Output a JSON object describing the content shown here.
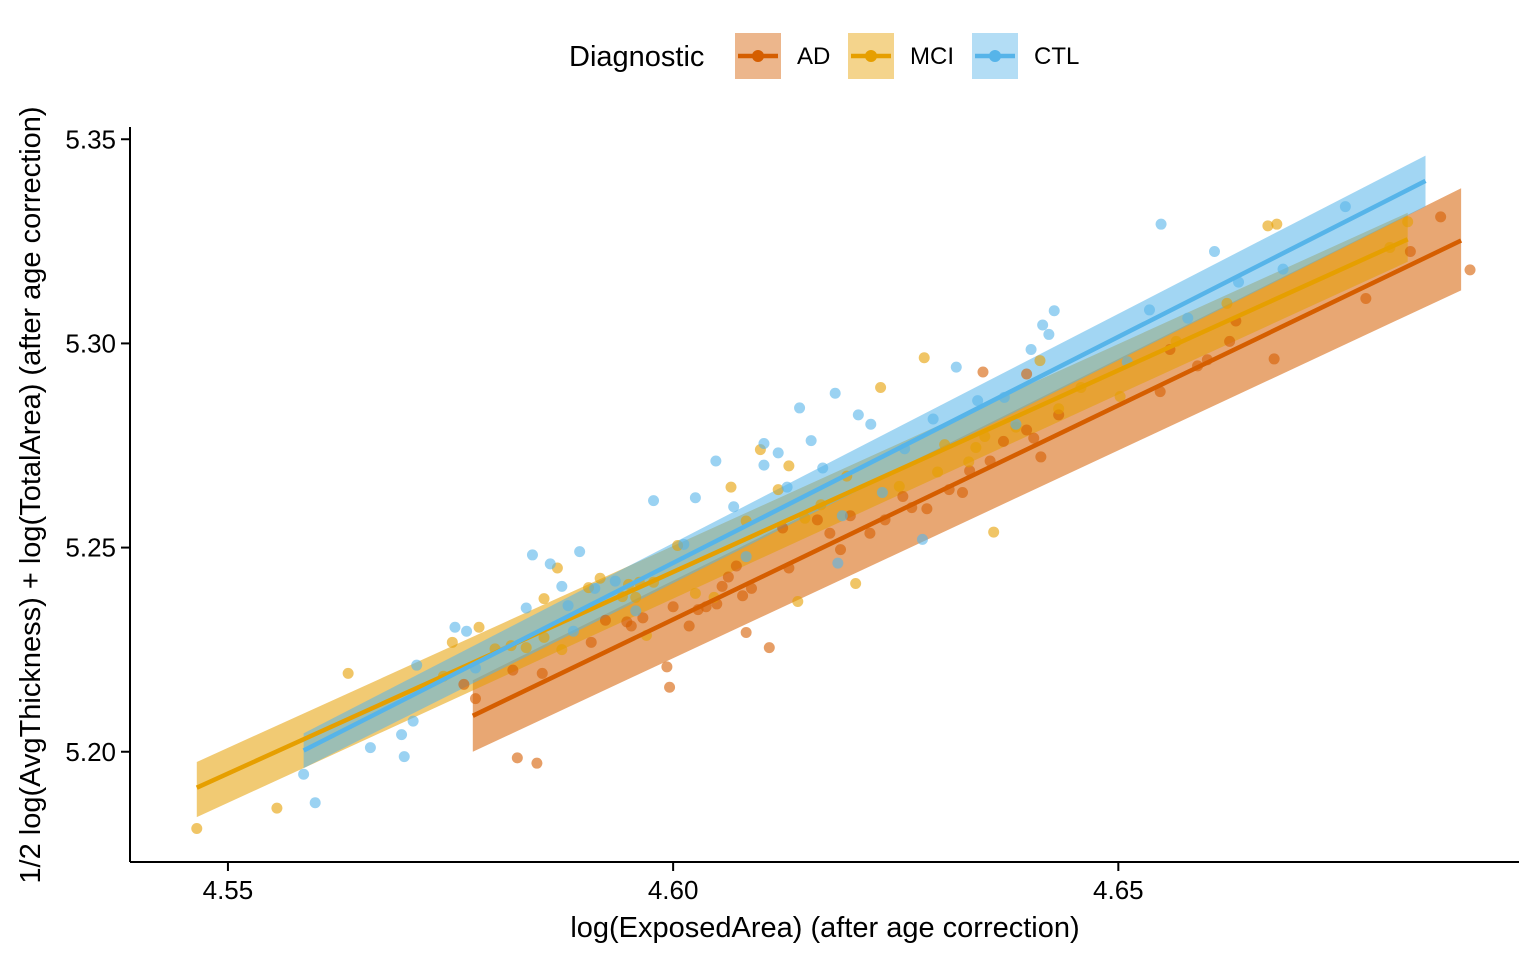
{
  "chart_data": {
    "type": "scatter",
    "xlabel": "log(ExposedArea) (after age correction)",
    "ylabel": "1/2 log(AvgThickness) + log(TotalArea) (after age correction)",
    "xlim": [
      4.539,
      4.695
    ],
    "ylim": [
      5.173,
      5.353
    ],
    "x_ticks": [
      "4.55",
      "4.60",
      "4.65"
    ],
    "x_tick_values": [
      4.55,
      4.6,
      4.65
    ],
    "y_ticks": [
      "5.20",
      "5.25",
      "5.30",
      "5.35"
    ],
    "y_tick_values": [
      5.2,
      5.25,
      5.3,
      5.35
    ],
    "grid": false,
    "legend": {
      "title": "Diagnostic",
      "position": "top",
      "entries": [
        "AD",
        "MCI",
        "CTL"
      ]
    },
    "series": [
      {
        "name": "AD",
        "color": "#D55E00",
        "fit": {
          "x": [
            4.5775,
            4.6885
          ],
          "y": [
            5.2088,
            5.3252
          ],
          "ci_low": [
            5.2,
            5.313
          ],
          "ci_high": [
            5.2175,
            5.338
          ]
        },
        "points": [
          [
            4.5765,
            5.2165
          ],
          [
            4.5778,
            5.213
          ],
          [
            4.582,
            5.22
          ],
          [
            4.5825,
            5.1985
          ],
          [
            4.5847,
            5.1972
          ],
          [
            4.5853,
            5.2192
          ],
          [
            4.5908,
            5.2268
          ],
          [
            4.5924,
            5.2322
          ],
          [
            4.5948,
            5.2318
          ],
          [
            4.5953,
            5.2308
          ],
          [
            4.5966,
            5.2328
          ],
          [
            4.5993,
            5.2208
          ],
          [
            4.5996,
            5.2158
          ],
          [
            4.6,
            5.2355
          ],
          [
            4.6018,
            5.2308
          ],
          [
            4.6028,
            5.2348
          ],
          [
            4.6037,
            5.2355
          ],
          [
            4.6049,
            5.2362
          ],
          [
            4.6055,
            5.2405
          ],
          [
            4.6062,
            5.2428
          ],
          [
            4.6071,
            5.2455
          ],
          [
            4.6078,
            5.2382
          ],
          [
            4.6082,
            5.2292
          ],
          [
            4.6088,
            5.24
          ],
          [
            4.6108,
            5.2255
          ],
          [
            4.6123,
            5.2548
          ],
          [
            4.613,
            5.245
          ],
          [
            4.6162,
            5.2568
          ],
          [
            4.6176,
            5.2535
          ],
          [
            4.6188,
            5.2495
          ],
          [
            4.6199,
            5.2578
          ],
          [
            4.6221,
            5.2535
          ],
          [
            4.6238,
            5.2568
          ],
          [
            4.6258,
            5.2625
          ],
          [
            4.6268,
            5.2598
          ],
          [
            4.6285,
            5.2595
          ],
          [
            4.631,
            5.2642
          ],
          [
            4.6325,
            5.2635
          ],
          [
            4.6333,
            5.2688
          ],
          [
            4.6356,
            5.2712
          ],
          [
            4.6371,
            5.276
          ],
          [
            4.6397,
            5.2788
          ],
          [
            4.6413,
            5.2722
          ],
          [
            4.6348,
            5.293
          ],
          [
            4.6397,
            5.2925
          ],
          [
            4.6405,
            5.2768
          ],
          [
            4.6433,
            5.2825
          ],
          [
            4.6547,
            5.2882
          ],
          [
            4.6558,
            5.2985
          ],
          [
            4.6589,
            5.2945
          ],
          [
            4.66,
            5.296
          ],
          [
            4.6625,
            5.3005
          ],
          [
            4.6632,
            5.3055
          ],
          [
            4.6675,
            5.2962
          ],
          [
            4.6778,
            5.311
          ],
          [
            4.6828,
            5.3225
          ],
          [
            4.6862,
            5.331
          ],
          [
            4.6895,
            5.318
          ]
        ]
      },
      {
        "name": "MCI",
        "color": "#E69F00",
        "fit": {
          "x": [
            4.5465,
            4.6825
          ],
          "y": [
            5.1912
          ],
          "y_end": 5.3255,
          "ci_low": [
            5.184,
            5.32
          ],
          "ci_high": [
            5.1975,
            5.332
          ]
        },
        "points": [
          [
            4.5465,
            5.1812
          ],
          [
            4.5555,
            5.1862
          ],
          [
            4.5635,
            5.2192
          ],
          [
            4.5742,
            5.2185
          ],
          [
            4.5752,
            5.2268
          ],
          [
            4.5782,
            5.2305
          ],
          [
            4.58,
            5.2252
          ],
          [
            4.5818,
            5.226
          ],
          [
            4.5835,
            5.2255
          ],
          [
            4.5855,
            5.228
          ],
          [
            4.5875,
            5.225
          ],
          [
            4.5855,
            5.2375
          ],
          [
            4.587,
            5.245
          ],
          [
            4.5905,
            5.2402
          ],
          [
            4.5918,
            5.2425
          ],
          [
            4.5943,
            5.238
          ],
          [
            4.595,
            5.241
          ],
          [
            4.5958,
            5.2378
          ],
          [
            4.5962,
            5.2415
          ],
          [
            4.597,
            5.2285
          ],
          [
            4.5978,
            5.2415
          ],
          [
            4.6005,
            5.2505
          ],
          [
            4.6025,
            5.2388
          ],
          [
            4.6046,
            5.2378
          ],
          [
            4.6065,
            5.2648
          ],
          [
            4.6082,
            5.2565
          ],
          [
            4.6098,
            5.274
          ],
          [
            4.6118,
            5.2642
          ],
          [
            4.613,
            5.27
          ],
          [
            4.614,
            5.2368
          ],
          [
            4.6148,
            5.2572
          ],
          [
            4.6166,
            5.2605
          ],
          [
            4.6195,
            5.2675
          ],
          [
            4.6205,
            5.2412
          ],
          [
            4.6233,
            5.2892
          ],
          [
            4.6254,
            5.265
          ],
          [
            4.6282,
            5.2965
          ],
          [
            4.6297,
            5.2685
          ],
          [
            4.6305,
            5.2752
          ],
          [
            4.6332,
            5.271
          ],
          [
            4.634,
            5.2745
          ],
          [
            4.635,
            5.2772
          ],
          [
            4.636,
            5.2538
          ],
          [
            4.6385,
            5.2795
          ],
          [
            4.6412,
            5.2958
          ],
          [
            4.6433,
            5.284
          ],
          [
            4.6458,
            5.2892
          ],
          [
            4.6502,
            5.287
          ],
          [
            4.6565,
            5.3005
          ],
          [
            4.6622,
            5.3098
          ],
          [
            4.6668,
            5.3288
          ],
          [
            4.6678,
            5.3292
          ],
          [
            4.6805,
            5.3235
          ],
          [
            4.6825,
            5.3298
          ]
        ]
      },
      {
        "name": "CTL",
        "color": "#56B4E9",
        "fit": {
          "x": [
            4.5585,
            4.6845
          ],
          "y": [
            5.2003
          ],
          "y_end": 5.3398,
          "ci_low": [
            5.196,
            5.3335
          ],
          "ci_high": [
            5.2045,
            5.346
          ]
        },
        "points": [
          [
            4.5585,
            5.1945
          ],
          [
            4.5598,
            5.1875
          ],
          [
            4.566,
            5.201
          ],
          [
            4.5695,
            5.2042
          ],
          [
            4.5698,
            5.1988
          ],
          [
            4.5708,
            5.2075
          ],
          [
            4.5712,
            5.2212
          ],
          [
            4.5755,
            5.2305
          ],
          [
            4.5768,
            5.2295
          ],
          [
            4.5778,
            5.2205
          ],
          [
            4.5835,
            5.2352
          ],
          [
            4.5842,
            5.2482
          ],
          [
            4.5862,
            5.246
          ],
          [
            4.5875,
            5.2405
          ],
          [
            4.5882,
            5.2358
          ],
          [
            4.5888,
            5.2295
          ],
          [
            4.5895,
            5.249
          ],
          [
            4.5912,
            5.24
          ],
          [
            4.5935,
            5.2418
          ],
          [
            4.5958,
            5.2345
          ],
          [
            4.5978,
            5.2615
          ],
          [
            4.6012,
            5.2508
          ],
          [
            4.6025,
            5.2622
          ],
          [
            4.6048,
            5.2712
          ],
          [
            4.6068,
            5.26
          ],
          [
            4.6082,
            5.2478
          ],
          [
            4.6102,
            5.2702
          ],
          [
            4.6118,
            5.2732
          ],
          [
            4.6128,
            5.2648
          ],
          [
            4.6142,
            5.2842
          ],
          [
            4.6155,
            5.2762
          ],
          [
            4.6168,
            5.2695
          ],
          [
            4.6182,
            5.2878
          ],
          [
            4.619,
            5.2578
          ],
          [
            4.6208,
            5.2825
          ],
          [
            4.6222,
            5.2802
          ],
          [
            4.6235,
            5.2635
          ],
          [
            4.626,
            5.2742
          ],
          [
            4.628,
            5.252
          ],
          [
            4.6292,
            5.2815
          ],
          [
            4.6318,
            5.2942
          ],
          [
            4.6342,
            5.286
          ],
          [
            4.6372,
            5.2868
          ],
          [
            4.6385,
            5.2802
          ],
          [
            4.6402,
            5.2985
          ],
          [
            4.6415,
            5.3045
          ],
          [
            4.6422,
            5.3022
          ],
          [
            4.6428,
            5.308
          ],
          [
            4.651,
            5.2955
          ],
          [
            4.6535,
            5.3082
          ],
          [
            4.6548,
            5.3292
          ],
          [
            4.6578,
            5.3062
          ],
          [
            4.6608,
            5.3225
          ],
          [
            4.6635,
            5.315
          ],
          [
            4.6685,
            5.3182
          ],
          [
            4.6755,
            5.3335
          ],
          [
            4.6185,
            5.2462
          ],
          [
            4.6102,
            5.2755
          ]
        ]
      }
    ]
  }
}
